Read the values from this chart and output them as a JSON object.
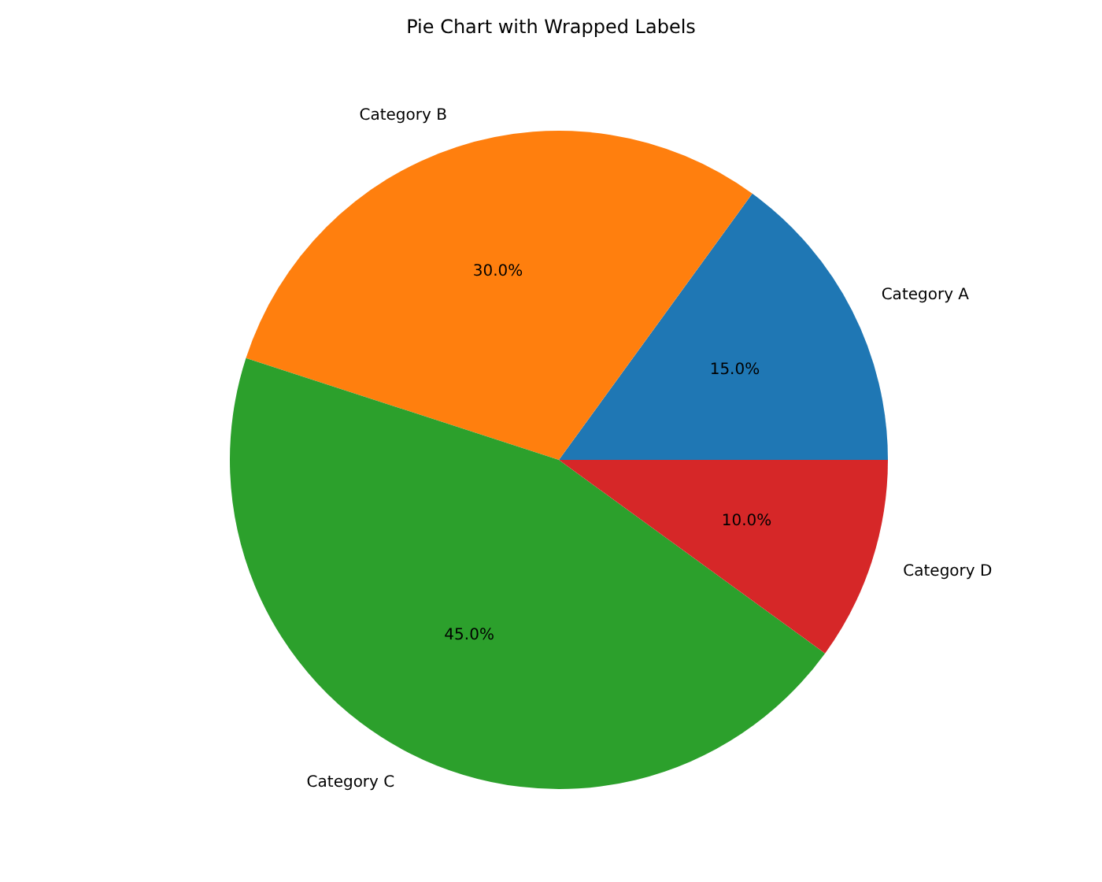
{
  "chart_data": {
    "type": "pie",
    "title": "Pie Chart with Wrapped Labels",
    "categories": [
      "Category A",
      "Category B",
      "Category C",
      "Category D"
    ],
    "values": [
      15,
      30,
      45,
      10
    ],
    "colors": [
      "#1f77b4",
      "#ff7f0e",
      "#2ca02c",
      "#d62728"
    ],
    "value_labels": [
      "15.0%",
      "30.0%",
      "45.0%",
      "10.0%"
    ],
    "legend": false
  }
}
